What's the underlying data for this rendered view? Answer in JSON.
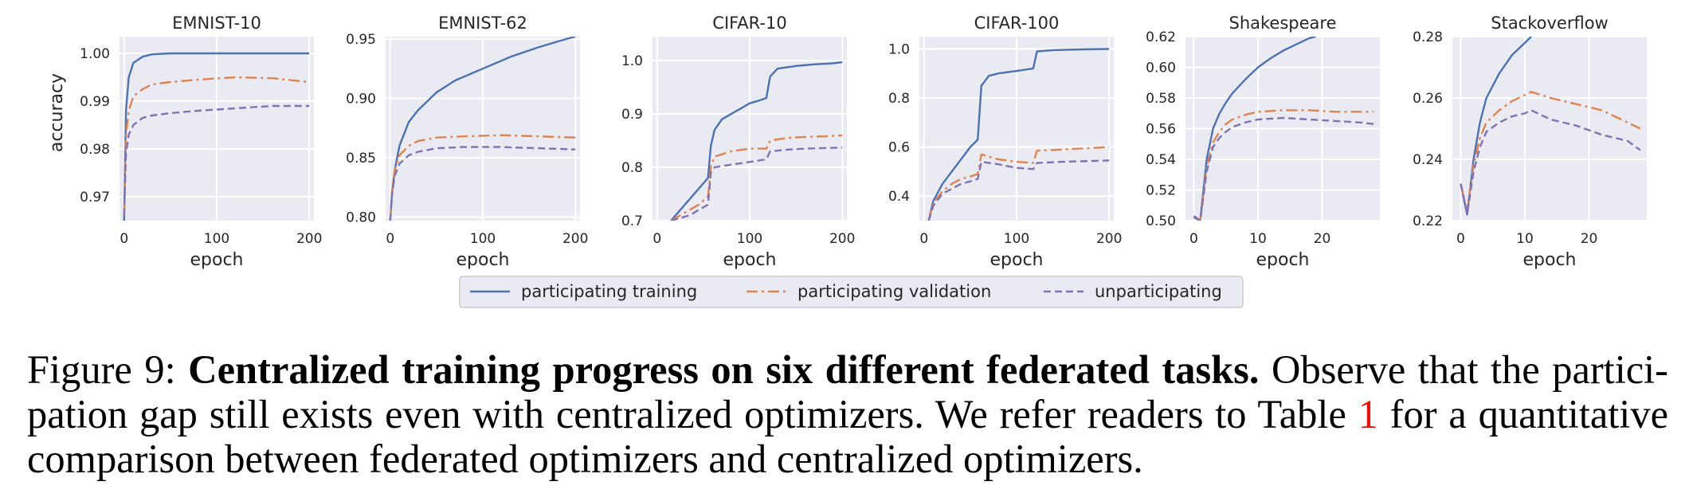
{
  "chart_data": [
    {
      "type": "line",
      "title": "EMNIST-10",
      "xlabel": "epoch",
      "ylabel": "accuracy",
      "xlim": [
        -5,
        205
      ],
      "ylim": [
        0.965,
        1.0035
      ],
      "xticks": [
        0,
        100,
        200
      ],
      "yticks": [
        0.97,
        0.98,
        0.99,
        1.0
      ],
      "ytick_labels": [
        "0.97",
        "0.98",
        "0.99",
        "1.00"
      ],
      "series": [
        {
          "name": "participating training",
          "style": "solid",
          "x": [
            0,
            2,
            5,
            10,
            20,
            30,
            50,
            80,
            120,
            160,
            200
          ],
          "y": [
            0.965,
            0.988,
            0.995,
            0.998,
            0.9993,
            0.9998,
            1.0,
            1.0,
            1.0,
            1.0,
            1.0
          ]
        },
        {
          "name": "participating validation",
          "style": "dashdot",
          "x": [
            0,
            2,
            5,
            10,
            20,
            30,
            50,
            80,
            120,
            160,
            200
          ],
          "y": [
            0.966,
            0.983,
            0.988,
            0.991,
            0.9925,
            0.9935,
            0.994,
            0.9945,
            0.995,
            0.9948,
            0.994
          ]
        },
        {
          "name": "unparticipating",
          "style": "dashed",
          "x": [
            0,
            2,
            5,
            10,
            20,
            30,
            50,
            80,
            120,
            160,
            200
          ],
          "y": [
            0.966,
            0.979,
            0.983,
            0.985,
            0.9865,
            0.987,
            0.9875,
            0.988,
            0.9885,
            0.989,
            0.989
          ]
        }
      ]
    },
    {
      "type": "line",
      "title": "EMNIST-62",
      "xlabel": "epoch",
      "ylabel": "",
      "xlim": [
        -5,
        205
      ],
      "ylim": [
        0.797,
        0.952
      ],
      "xticks": [
        0,
        100,
        200
      ],
      "yticks": [
        0.8,
        0.85,
        0.9,
        0.95
      ],
      "ytick_labels": [
        "0.80",
        "0.85",
        "0.90",
        "0.95"
      ],
      "series": [
        {
          "name": "participating training",
          "style": "solid",
          "x": [
            0,
            2,
            5,
            10,
            20,
            30,
            50,
            70,
            100,
            130,
            160,
            190,
            200
          ],
          "y": [
            0.797,
            0.82,
            0.84,
            0.86,
            0.88,
            0.89,
            0.905,
            0.915,
            0.925,
            0.935,
            0.943,
            0.95,
            0.952
          ]
        },
        {
          "name": "participating validation",
          "style": "dashdot",
          "x": [
            0,
            2,
            5,
            10,
            20,
            30,
            50,
            80,
            120,
            160,
            200
          ],
          "y": [
            0.797,
            0.822,
            0.84,
            0.852,
            0.86,
            0.864,
            0.867,
            0.868,
            0.869,
            0.868,
            0.867
          ]
        },
        {
          "name": "unparticipating",
          "style": "dashed",
          "x": [
            0,
            2,
            5,
            10,
            20,
            30,
            50,
            80,
            120,
            160,
            200
          ],
          "y": [
            0.797,
            0.82,
            0.835,
            0.845,
            0.852,
            0.855,
            0.858,
            0.859,
            0.859,
            0.858,
            0.857
          ]
        }
      ]
    },
    {
      "type": "line",
      "title": "CIFAR-10",
      "xlabel": "epoch",
      "ylabel": "",
      "xlim": [
        -5,
        205
      ],
      "ylim": [
        0.7,
        1.045
      ],
      "xticks": [
        0,
        100,
        200
      ],
      "yticks": [
        0.7,
        0.8,
        0.9,
        1.0
      ],
      "ytick_labels": [
        "0.7",
        "0.8",
        "0.9",
        "1.0"
      ],
      "series": [
        {
          "name": "participating training",
          "style": "solid",
          "x": [
            15,
            25,
            35,
            45,
            55,
            58,
            62,
            70,
            80,
            90,
            100,
            110,
            118,
            122,
            130,
            150,
            170,
            190,
            200
          ],
          "y": [
            0.7,
            0.72,
            0.74,
            0.76,
            0.78,
            0.84,
            0.87,
            0.89,
            0.9,
            0.91,
            0.92,
            0.925,
            0.93,
            0.97,
            0.985,
            0.99,
            0.993,
            0.995,
            0.997
          ]
        },
        {
          "name": "participating validation",
          "style": "dashdot",
          "x": [
            15,
            25,
            35,
            45,
            55,
            58,
            62,
            80,
            100,
            118,
            122,
            140,
            160,
            180,
            200
          ],
          "y": [
            0.7,
            0.71,
            0.72,
            0.73,
            0.745,
            0.8,
            0.82,
            0.83,
            0.835,
            0.835,
            0.85,
            0.855,
            0.857,
            0.858,
            0.86
          ]
        },
        {
          "name": "unparticipating",
          "style": "dashed",
          "x": [
            15,
            25,
            35,
            45,
            55,
            58,
            62,
            80,
            100,
            118,
            122,
            140,
            160,
            180,
            200
          ],
          "y": [
            0.7,
            0.705,
            0.71,
            0.72,
            0.73,
            0.79,
            0.8,
            0.805,
            0.81,
            0.815,
            0.83,
            0.833,
            0.835,
            0.836,
            0.837
          ]
        }
      ]
    },
    {
      "type": "line",
      "title": "CIFAR-100",
      "xlabel": "epoch",
      "ylabel": "",
      "xlim": [
        -5,
        205
      ],
      "ylim": [
        0.3,
        1.05
      ],
      "xticks": [
        0,
        100,
        200
      ],
      "yticks": [
        0.4,
        0.6,
        0.8,
        1.0
      ],
      "ytick_labels": [
        "0.4",
        "0.6",
        "0.8",
        "1.0"
      ],
      "series": [
        {
          "name": "participating training",
          "style": "solid",
          "x": [
            5,
            10,
            20,
            30,
            40,
            50,
            58,
            62,
            70,
            80,
            100,
            118,
            122,
            140,
            170,
            200
          ],
          "y": [
            0.3,
            0.38,
            0.45,
            0.5,
            0.55,
            0.6,
            0.63,
            0.85,
            0.89,
            0.9,
            0.91,
            0.92,
            0.99,
            0.995,
            0.998,
            1.0
          ]
        },
        {
          "name": "participating validation",
          "style": "dashdot",
          "x": [
            5,
            10,
            20,
            30,
            40,
            50,
            58,
            62,
            80,
            100,
            118,
            122,
            150,
            200
          ],
          "y": [
            0.3,
            0.37,
            0.42,
            0.45,
            0.47,
            0.48,
            0.49,
            0.57,
            0.55,
            0.54,
            0.535,
            0.585,
            0.59,
            0.6
          ]
        },
        {
          "name": "unparticipating",
          "style": "dashed",
          "x": [
            5,
            10,
            20,
            30,
            40,
            50,
            58,
            62,
            80,
            100,
            118,
            122,
            150,
            200
          ],
          "y": [
            0.3,
            0.36,
            0.41,
            0.43,
            0.45,
            0.46,
            0.47,
            0.54,
            0.53,
            0.515,
            0.51,
            0.535,
            0.54,
            0.545
          ]
        }
      ]
    },
    {
      "type": "line",
      "title": "Shakespeare",
      "xlabel": "epoch",
      "ylabel": "",
      "xlim": [
        -1.3,
        29
      ],
      "ylim": [
        0.5,
        0.62
      ],
      "xticks": [
        0,
        10,
        20
      ],
      "yticks": [
        0.5,
        0.52,
        0.54,
        0.56,
        0.58,
        0.6,
        0.62
      ],
      "ytick_labels": [
        "0.50",
        "0.52",
        "0.54",
        "0.56",
        "0.58",
        "0.60",
        "0.62"
      ],
      "series": [
        {
          "name": "participating training",
          "style": "solid",
          "x": [
            0,
            1,
            2,
            3,
            4,
            5,
            6,
            8,
            10,
            12,
            14,
            16,
            18,
            19
          ],
          "y": [
            0.503,
            0.5,
            0.54,
            0.56,
            0.57,
            0.577,
            0.583,
            0.592,
            0.6,
            0.606,
            0.611,
            0.615,
            0.619,
            0.62
          ]
        },
        {
          "name": "participating validation",
          "style": "dashdot",
          "x": [
            0,
            1,
            2,
            3,
            4,
            5,
            6,
            8,
            10,
            14,
            18,
            22,
            26,
            28
          ],
          "y": [
            0.502,
            0.5,
            0.535,
            0.551,
            0.558,
            0.563,
            0.566,
            0.569,
            0.571,
            0.572,
            0.572,
            0.571,
            0.571,
            0.571
          ]
        },
        {
          "name": "unparticipating",
          "style": "dashed",
          "x": [
            0,
            1,
            2,
            3,
            4,
            5,
            6,
            8,
            10,
            14,
            18,
            22,
            26,
            28
          ],
          "y": [
            0.502,
            0.5,
            0.532,
            0.548,
            0.554,
            0.558,
            0.561,
            0.564,
            0.566,
            0.567,
            0.566,
            0.565,
            0.564,
            0.563
          ]
        }
      ]
    },
    {
      "type": "line",
      "title": "Stackoverflow",
      "xlabel": "epoch",
      "ylabel": "",
      "xlim": [
        -1.3,
        29
      ],
      "ylim": [
        0.22,
        0.28
      ],
      "xticks": [
        0,
        10,
        20
      ],
      "yticks": [
        0.22,
        0.24,
        0.26,
        0.28
      ],
      "ytick_labels": [
        "0.22",
        "0.24",
        "0.26",
        "0.28"
      ],
      "series": [
        {
          "name": "participating training",
          "style": "solid",
          "x": [
            0,
            1,
            2,
            3,
            4,
            6,
            8,
            10,
            11
          ],
          "y": [
            0.232,
            0.222,
            0.24,
            0.252,
            0.26,
            0.268,
            0.274,
            0.278,
            0.28
          ]
        },
        {
          "name": "participating validation",
          "style": "dashdot",
          "x": [
            0,
            1,
            2,
            3,
            4,
            6,
            8,
            10,
            11,
            14,
            18,
            22,
            26,
            28
          ],
          "y": [
            0.232,
            0.223,
            0.238,
            0.247,
            0.252,
            0.256,
            0.259,
            0.261,
            0.262,
            0.26,
            0.258,
            0.256,
            0.252,
            0.25
          ]
        },
        {
          "name": "unparticipating",
          "style": "dashed",
          "x": [
            0,
            1,
            2,
            3,
            4,
            6,
            8,
            10,
            11,
            14,
            18,
            22,
            26,
            28
          ],
          "y": [
            0.232,
            0.222,
            0.236,
            0.244,
            0.249,
            0.252,
            0.254,
            0.255,
            0.256,
            0.253,
            0.251,
            0.248,
            0.246,
            0.243
          ]
        }
      ]
    }
  ],
  "legend": [
    "participating training",
    "participating validation",
    "unparticipating"
  ],
  "colors": {
    "training": "#4c72b0",
    "validation": "#dd8452",
    "unparticipating": "#8172b3",
    "axes_bg": "#eaeaf2",
    "grid": "#ffffff",
    "text": "#262626",
    "link": "#e3120b"
  },
  "caption": {
    "label": "Figure 9:",
    "bold": "Centralized training progress on six different federated tasks.",
    "text_a": "Observe that the partici- pation gap still exists even with centralized optimizers. We refer readers to Table",
    "ref": "1",
    "text_b": "for a quantitative comparison between federated optimizers and centralized optimizers."
  }
}
